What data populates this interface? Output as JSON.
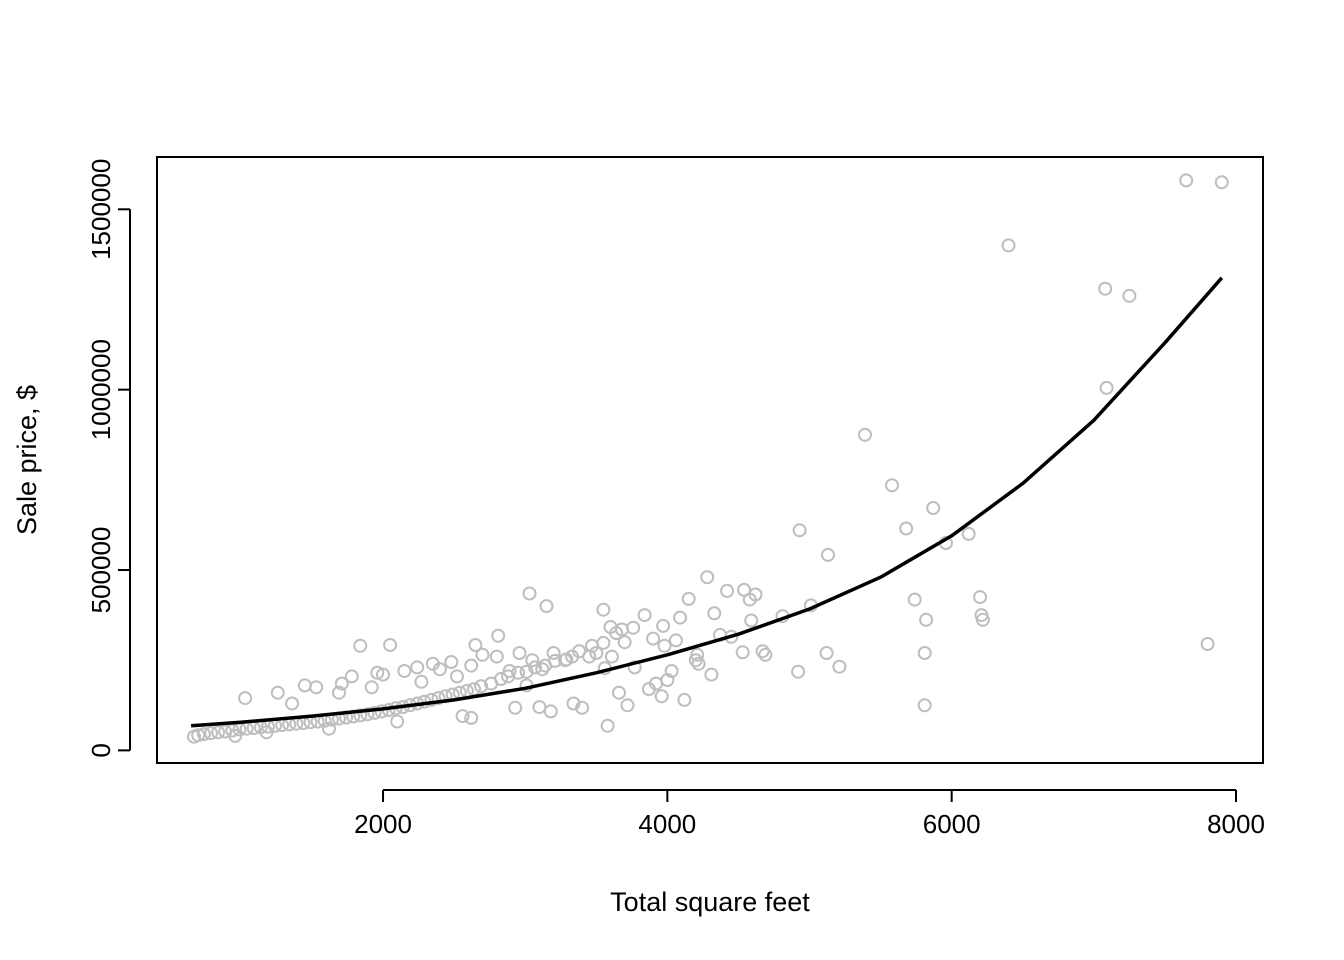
{
  "chart_data": {
    "type": "scatter",
    "title": "",
    "xlabel": "Total square feet",
    "ylabel": "Sale price, $",
    "xlim": [
      410,
      8190
    ],
    "ylim": [
      -35000,
      1645000
    ],
    "x_ticks": [
      2000,
      4000,
      6000,
      8000
    ],
    "y_ticks": [
      0,
      500000,
      1000000,
      1500000
    ],
    "x_tick_labels": [
      "2000",
      "4000",
      "6000",
      "8000"
    ],
    "y_tick_labels": [
      "0",
      "500000",
      "1000000",
      "1500000"
    ],
    "grid": false,
    "legend": "none",
    "colors": {
      "points": "#bebebe",
      "fit": "#000000",
      "frame": "#000000"
    },
    "series": [
      {
        "kind": "points",
        "x": [
          7650,
          7900,
          6400,
          7080,
          7250,
          7090,
          7800,
          5390,
          5580,
          5680,
          5870,
          5960,
          6120,
          5740,
          5820,
          5810,
          5810,
          6200,
          6210,
          6220,
          4930,
          5130,
          5010,
          4920,
          5120,
          5210,
          3030,
          3150,
          3550,
          4280,
          4420,
          4540,
          4580,
          4620,
          4330,
          4150,
          4090,
          4590,
          4810,
          4670,
          4690,
          4530,
          4310,
          4220,
          4030,
          3970,
          3980,
          3840,
          3760,
          3680,
          3640,
          3600,
          3550,
          3470,
          3560,
          3450,
          3380,
          3290,
          3210,
          3120,
          3070,
          3010,
          2950,
          2880,
          2830,
          2760,
          2690,
          2640,
          2590,
          2540,
          2490,
          2440,
          2390,
          2340,
          2290,
          2240,
          2190,
          2140,
          2090,
          2040,
          1990,
          1940,
          1890,
          1840,
          1790,
          1740,
          1690,
          1640,
          1590,
          1540,
          1490,
          1440,
          1390,
          1340,
          1290,
          1240,
          1190,
          1140,
          1090,
          1040,
          990,
          940,
          890,
          840,
          790,
          740,
          700,
          670,
          2810,
          2650,
          2050,
          1840,
          3580,
          3720,
          3960,
          4120,
          3870,
          3660,
          3180,
          2930,
          3400,
          3920,
          4200,
          3280,
          2960,
          2700,
          2480,
          2350,
          2240,
          1960,
          1710,
          1530,
          1260,
          1030,
          3100,
          3340,
          2560,
          2100,
          1620,
          1180,
          960,
          2000,
          2400,
          2800,
          3200,
          3500,
          3700,
          3900,
          4060,
          1450,
          1780,
          2150,
          2620,
          3050,
          3330,
          1360,
          1690,
          1920,
          2270,
          2520,
          2890,
          3140,
          3610,
          4450,
          4000,
          3770,
          4210,
          4370,
          3010,
          2620
        ],
        "y": [
          1580000,
          1575000,
          1400000,
          1280000,
          1260000,
          1005000,
          295000,
          875000,
          735000,
          615000,
          672000,
          575000,
          600000,
          418000,
          362000,
          270000,
          125000,
          425000,
          375000,
          362000,
          610000,
          542000,
          402000,
          218000,
          270000,
          232000,
          435000,
          400000,
          390000,
          480000,
          442000,
          445000,
          418000,
          432000,
          380000,
          420000,
          368000,
          360000,
          372000,
          275000,
          265000,
          272000,
          210000,
          240000,
          220000,
          345000,
          290000,
          375000,
          340000,
          335000,
          325000,
          342000,
          298000,
          290000,
          228000,
          260000,
          275000,
          252000,
          248000,
          225000,
          230000,
          218000,
          215000,
          205000,
          198000,
          185000,
          178000,
          170000,
          165000,
          160000,
          155000,
          150000,
          145000,
          140000,
          135000,
          130000,
          125000,
          120000,
          117000,
          112000,
          108000,
          104000,
          100000,
          97000,
          94000,
          91000,
          88000,
          85000,
          82000,
          80000,
          78000,
          76000,
          74000,
          72000,
          70000,
          68000,
          66000,
          64000,
          62000,
          60000,
          58000,
          55000,
          52000,
          50000,
          48000,
          45000,
          42000,
          38000,
          318000,
          292000,
          292000,
          290000,
          68000,
          125000,
          150000,
          140000,
          170000,
          160000,
          108000,
          118000,
          118000,
          185000,
          250000,
          250000,
          270000,
          265000,
          245000,
          240000,
          230000,
          215000,
          185000,
          175000,
          160000,
          145000,
          120000,
          130000,
          95000,
          80000,
          60000,
          50000,
          40000,
          210000,
          225000,
          260000,
          270000,
          270000,
          300000,
          310000,
          305000,
          180000,
          205000,
          220000,
          235000,
          250000,
          260000,
          130000,
          160000,
          175000,
          190000,
          205000,
          220000,
          235000,
          260000,
          315000,
          195000,
          230000,
          265000,
          320000,
          180000,
          90000
        ]
      },
      {
        "kind": "line",
        "x": [
          650,
          1000,
          1500,
          2000,
          2500,
          3000,
          3500,
          4000,
          4500,
          5000,
          5500,
          6000,
          6500,
          7000,
          7500,
          7900
        ],
        "y": [
          68000,
          78000,
          95000,
          115000,
          140000,
          172000,
          215000,
          265000,
          322000,
          392000,
          480000,
          595000,
          740000,
          915000,
          1130000,
          1310000
        ]
      }
    ]
  }
}
